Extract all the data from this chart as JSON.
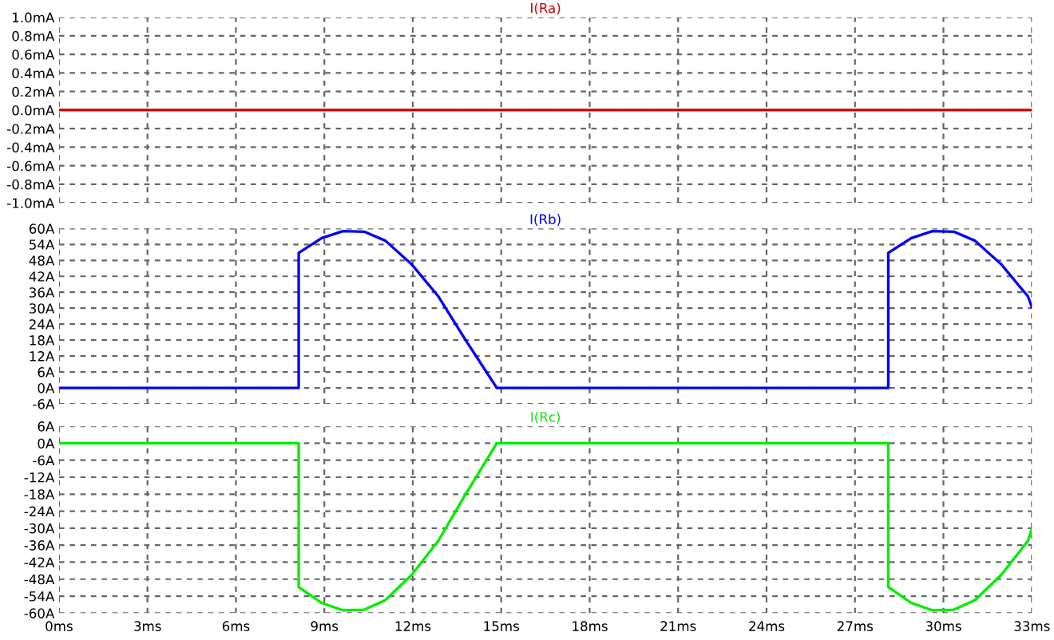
{
  "chart_data": [
    {
      "type": "line",
      "title": "I(Ra)",
      "x": [
        0,
        33
      ],
      "series": [
        {
          "color": "#cc0000",
          "values": [
            0,
            0
          ]
        }
      ],
      "xlim": [
        0,
        33
      ],
      "xticks": [
        {
          "value": 0,
          "label": null
        },
        {
          "value": 3,
          "label": null
        },
        {
          "value": 6,
          "label": null
        },
        {
          "value": 9,
          "label": null
        },
        {
          "value": 12,
          "label": null
        },
        {
          "value": 15,
          "label": null
        },
        {
          "value": 18,
          "label": null
        },
        {
          "value": 21,
          "label": null
        },
        {
          "value": 24,
          "label": null
        },
        {
          "value": 27,
          "label": null
        },
        {
          "value": 30,
          "label": null
        },
        {
          "value": 33,
          "label": null
        }
      ],
      "ylim": [
        -1.0,
        1.0
      ],
      "yticks": [
        {
          "value": 1.0,
          "label": "1.0mA"
        },
        {
          "value": 0.8,
          "label": "0.8mA"
        },
        {
          "value": 0.6,
          "label": "0.6mA"
        },
        {
          "value": 0.4,
          "label": "0.4mA"
        },
        {
          "value": 0.2,
          "label": "0.2mA"
        },
        {
          "value": 0.0,
          "label": "0.0mA"
        },
        {
          "value": -0.2,
          "label": "-0.2mA"
        },
        {
          "value": -0.4,
          "label": "-0.4mA"
        },
        {
          "value": -0.6,
          "label": "-0.6mA"
        },
        {
          "value": -0.8,
          "label": "-0.8mA"
        },
        {
          "value": -1.0,
          "label": "-1.0mA"
        }
      ],
      "grid": true,
      "line_style": "solid",
      "tick_labels": "y"
    },
    {
      "type": "line",
      "title": "I(Rb)",
      "x": [
        0,
        8.13,
        8.13,
        8.91,
        9.63,
        10.35,
        11.07,
        11.97,
        12.87,
        13.77,
        14.85,
        28.13,
        28.13,
        28.91,
        29.63,
        30.35,
        31.07,
        31.97,
        32.87,
        33.0
      ],
      "series": [
        {
          "color": "#0000ff",
          "values": [
            0,
            0,
            50.8,
            56.4,
            59,
            58.8,
            55.4,
            46.4,
            34.4,
            18.4,
            0,
            0,
            50.8,
            56.4,
            59,
            58.8,
            55.4,
            46.4,
            34.4,
            30.3
          ]
        }
      ],
      "xlim": [
        0,
        33
      ],
      "xticks": [
        {
          "value": 0,
          "label": null
        },
        {
          "value": 3,
          "label": null
        },
        {
          "value": 6,
          "label": null
        },
        {
          "value": 9,
          "label": null
        },
        {
          "value": 12,
          "label": null
        },
        {
          "value": 15,
          "label": null
        },
        {
          "value": 18,
          "label": null
        },
        {
          "value": 21,
          "label": null
        },
        {
          "value": 24,
          "label": null
        },
        {
          "value": 27,
          "label": null
        },
        {
          "value": 30,
          "label": null
        },
        {
          "value": 33,
          "label": null
        }
      ],
      "ylim": [
        -6,
        60
      ],
      "yticks": [
        {
          "value": 60,
          "label": "60A"
        },
        {
          "value": 54,
          "label": "54A"
        },
        {
          "value": 48,
          "label": "48A"
        },
        {
          "value": 42,
          "label": "42A"
        },
        {
          "value": 36,
          "label": "36A"
        },
        {
          "value": 30,
          "label": "30A"
        },
        {
          "value": 24,
          "label": "24A"
        },
        {
          "value": 18,
          "label": "18A"
        },
        {
          "value": 12,
          "label": "12A"
        },
        {
          "value": 6,
          "label": "6A"
        },
        {
          "value": 0,
          "label": "0A"
        },
        {
          "value": -6,
          "label": "-6A"
        }
      ],
      "grid": true,
      "line_style": "solid",
      "tick_labels": "y"
    },
    {
      "type": "line",
      "title": "I(Rc)",
      "x": [
        0,
        8.13,
        8.13,
        8.91,
        9.63,
        10.35,
        11.07,
        11.97,
        12.87,
        13.77,
        14.85,
        28.13,
        28.13,
        28.91,
        29.63,
        30.35,
        31.07,
        31.97,
        32.87,
        33.0
      ],
      "series": [
        {
          "color": "#00ee00",
          "values": [
            0,
            0,
            -50.8,
            -56.4,
            -59,
            -58.8,
            -55.4,
            -46.4,
            -34.4,
            -18.4,
            0,
            0,
            -50.8,
            -56.4,
            -59,
            -58.8,
            -55.4,
            -46.4,
            -34.4,
            -30.3
          ]
        }
      ],
      "xlim": [
        0,
        33
      ],
      "xticks": [
        {
          "value": 0,
          "label": "0ms"
        },
        {
          "value": 3,
          "label": "3ms"
        },
        {
          "value": 6,
          "label": "6ms"
        },
        {
          "value": 9,
          "label": "9ms"
        },
        {
          "value": 12,
          "label": "12ms"
        },
        {
          "value": 15,
          "label": "15ms"
        },
        {
          "value": 18,
          "label": "18ms"
        },
        {
          "value": 21,
          "label": "21ms"
        },
        {
          "value": 24,
          "label": "24ms"
        },
        {
          "value": 27,
          "label": "27ms"
        },
        {
          "value": 30,
          "label": "30ms"
        },
        {
          "value": 33,
          "label": "33ms"
        }
      ],
      "ylim": [
        -60,
        6
      ],
      "yticks": [
        {
          "value": 6,
          "label": "6A"
        },
        {
          "value": 0,
          "label": "0A"
        },
        {
          "value": -6,
          "label": "-6A"
        },
        {
          "value": -12,
          "label": "-12A"
        },
        {
          "value": -18,
          "label": "-18A"
        },
        {
          "value": -24,
          "label": "-24A"
        },
        {
          "value": -30,
          "label": "-30A"
        },
        {
          "value": -36,
          "label": "-36A"
        },
        {
          "value": -42,
          "label": "-42A"
        },
        {
          "value": -48,
          "label": "-48A"
        },
        {
          "value": -54,
          "label": "-54A"
        },
        {
          "value": -60,
          "label": "-60A"
        }
      ],
      "grid": true,
      "line_style": "solid"
    }
  ]
}
